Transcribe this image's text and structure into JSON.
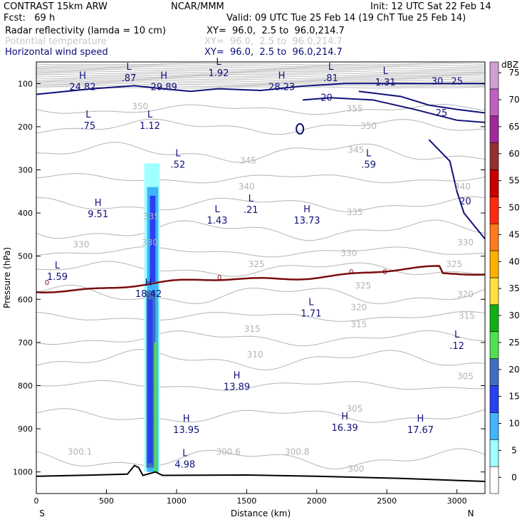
{
  "header": {
    "model": "CONTRAST 15km ARW",
    "agency": "NCAR/MMM",
    "init": "Init: 12 UTC Sat 22 Feb 14",
    "fcst": "Fcst:   69 h",
    "valid": "Valid: 09 UTC Tue 25 Feb 14 (19 ChT Tue 25 Feb 14)",
    "fields": [
      {
        "name": "Radar reflectivity (lamda = 10 cm)",
        "xy": "XY=  96.0,  2.5 to  96.0,214.7",
        "color": "#000000"
      },
      {
        "name": "Potential temperature",
        "xy": "XY=  96.0,  2.5 to  96.0,214.7",
        "color": "#c8c8c8"
      },
      {
        "name": "Horizontal wind speed",
        "xy": "XY=  96.0,  2.5 to  96.0,214.7",
        "color": "#0a0a7a"
      }
    ]
  },
  "chart_data": {
    "type": "heatmap",
    "title": "",
    "xlabel": "Distance (km)",
    "ylabel": "Pressure (hPa)",
    "xlim": [
      0,
      3200
    ],
    "ylim": [
      1050,
      50
    ],
    "x_ticks": [
      0,
      500,
      1000,
      1500,
      2000,
      2500,
      3000
    ],
    "y_ticks": [
      100,
      200,
      300,
      400,
      500,
      600,
      700,
      800,
      900,
      1000
    ],
    "x_end_labels": {
      "left": "S",
      "right": "N"
    },
    "colorbar": {
      "unit": "dBZ",
      "levels": [
        0,
        5,
        10,
        15,
        20,
        25,
        30,
        35,
        40,
        45,
        50,
        55,
        60,
        65,
        70,
        75
      ],
      "colors": [
        "#ffffff",
        "#a0ffff",
        "#40b4ff",
        "#2840f0",
        "#3f6fc0",
        "#50e050",
        "#10b010",
        "#ffe040",
        "#ffb000",
        "#ff7a1a",
        "#ff2a10",
        "#c80000",
        "#983030",
        "#a02898",
        "#c060c0",
        "#d0a0d0"
      ]
    },
    "reflectivity_column": {
      "x_range_km": [
        770,
        880
      ],
      "top_hPa": 285,
      "core_dbz": 20
    },
    "freezing_level_hPa": 550,
    "freezing_level_label": "0",
    "theta_labels": [
      {
        "v": "350",
        "x": 740,
        "p": 160
      },
      {
        "v": "355",
        "x": 2270,
        "p": 165
      },
      {
        "v": "350",
        "x": 2370,
        "p": 205
      },
      {
        "v": "345",
        "x": 1510,
        "p": 285
      },
      {
        "v": "345",
        "x": 2280,
        "p": 260
      },
      {
        "v": "340",
        "x": 1500,
        "p": 345
      },
      {
        "v": "340",
        "x": 3040,
        "p": 345
      },
      {
        "v": "335",
        "x": 820,
        "p": 415
      },
      {
        "v": "335",
        "x": 2270,
        "p": 405
      },
      {
        "v": "330",
        "x": 320,
        "p": 480
      },
      {
        "v": "330",
        "x": 810,
        "p": 475
      },
      {
        "v": "330",
        "x": 2230,
        "p": 500
      },
      {
        "v": "330",
        "x": 3060,
        "p": 475
      },
      {
        "v": "325",
        "x": 1570,
        "p": 525
      },
      {
        "v": "325",
        "x": 2330,
        "p": 575
      },
      {
        "v": "325",
        "x": 2980,
        "p": 525
      },
      {
        "v": "320",
        "x": 2300,
        "p": 625
      },
      {
        "v": "320",
        "x": 3060,
        "p": 595
      },
      {
        "v": "315",
        "x": 1540,
        "p": 675
      },
      {
        "v": "315",
        "x": 2300,
        "p": 665
      },
      {
        "v": "315",
        "x": 3070,
        "p": 645
      },
      {
        "v": "310",
        "x": 1560,
        "p": 735
      },
      {
        "v": "305",
        "x": 2270,
        "p": 860
      },
      {
        "v": "305",
        "x": 3060,
        "p": 785
      },
      {
        "v": "300.1",
        "x": 310,
        "p": 960
      },
      {
        "v": "300.6",
        "x": 1370,
        "p": 960
      },
      {
        "v": "300.8",
        "x": 1860,
        "p": 960
      },
      {
        "v": "300",
        "x": 2280,
        "p": 1000
      }
    ],
    "wind_labels": [
      {
        "v": "20",
        "x": 2070,
        "p": 140
      },
      {
        "v": "30",
        "x": 2860,
        "p": 102
      },
      {
        "v": "25",
        "x": 3000,
        "p": 102
      },
      {
        "v": "25",
        "x": 2890,
        "p": 175
      },
      {
        "v": "20",
        "x": 3060,
        "p": 380
      }
    ],
    "extrema": [
      {
        "t": "H",
        "v": "24.82",
        "x": 330,
        "p": 100
      },
      {
        "t": "L",
        "v": ".87",
        "x": 660,
        "p": 80
      },
      {
        "t": "H",
        "v": "29.89",
        "x": 910,
        "p": 100
      },
      {
        "t": "L",
        "v": "1.92",
        "x": 1300,
        "p": 68
      },
      {
        "t": "H",
        "v": "28.23",
        "x": 1750,
        "p": 100
      },
      {
        "t": "L",
        "v": ".81",
        "x": 2100,
        "p": 80
      },
      {
        "t": "L",
        "v": "1.31",
        "x": 2490,
        "p": 90
      },
      {
        "t": "L",
        "v": ".75",
        "x": 370,
        "p": 190
      },
      {
        "t": "L",
        "v": "1.12",
        "x": 810,
        "p": 190
      },
      {
        "t": "L",
        "v": ".52",
        "x": 1010,
        "p": 280
      },
      {
        "t": "L",
        "v": ".59",
        "x": 2370,
        "p": 280
      },
      {
        "t": "H",
        "v": "9.51",
        "x": 440,
        "p": 395
      },
      {
        "t": "L",
        "v": "1.43",
        "x": 1290,
        "p": 410
      },
      {
        "t": "L",
        "v": ".21",
        "x": 1530,
        "p": 385
      },
      {
        "t": "H",
        "v": "13.73",
        "x": 1930,
        "p": 410
      },
      {
        "t": "L",
        "v": "1.59",
        "x": 150,
        "p": 540
      },
      {
        "t": "H",
        "v": "18.42",
        "x": 800,
        "p": 580
      },
      {
        "t": "L",
        "v": "1.71",
        "x": 1960,
        "p": 625
      },
      {
        "t": "L",
        "v": ".12",
        "x": 3000,
        "p": 700
      },
      {
        "t": "H",
        "v": "13.89",
        "x": 1430,
        "p": 795
      },
      {
        "t": "H",
        "v": "13.95",
        "x": 1070,
        "p": 895
      },
      {
        "t": "H",
        "v": "16.39",
        "x": 2200,
        "p": 890
      },
      {
        "t": "H",
        "v": "17.67",
        "x": 2740,
        "p": 895
      },
      {
        "t": "L",
        "v": "4.98",
        "x": 1060,
        "p": 975
      }
    ]
  }
}
